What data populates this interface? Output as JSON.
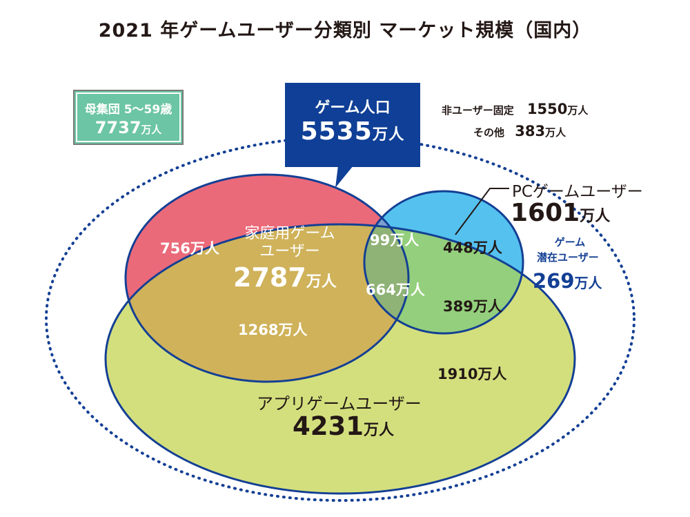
{
  "title": "2021 年ゲームユーザー分類別 マーケット規模（国内）",
  "population": {
    "label": "母集団 5〜59歳",
    "value": "7737",
    "unit": "万人"
  },
  "game_population": {
    "label": "ゲーム人口",
    "value": "5535",
    "unit": "万人"
  },
  "non_users": {
    "fixed_label": "非ユーザー固定",
    "fixed_value": "1550",
    "fixed_unit": "万人",
    "other_label": "その他",
    "other_value": "383",
    "other_unit": "万人"
  },
  "sets": {
    "home": {
      "label_line1": "家庭用ゲーム",
      "label_line2": "ユーザー",
      "value": "2787",
      "unit": "万人",
      "color": "#ea6a7a"
    },
    "pc": {
      "label": "PCゲームユーザー",
      "value": "1601",
      "unit": "万人",
      "color": "#55c1ef"
    },
    "app": {
      "label": "アプリゲームユーザー",
      "value": "4231",
      "unit": "万人",
      "color": "#d3df7d"
    }
  },
  "regions": {
    "home_only": "756万人",
    "home_pc": "99万人",
    "pc_only": "448万人",
    "all_three": "664万人",
    "pc_app": "389万人",
    "home_app": "1268万人",
    "app_only": "1910万人"
  },
  "potential": {
    "label_line1": "ゲーム",
    "label_line2": "潜在ユーザー",
    "value": "269",
    "unit": "万人",
    "color": "#133f94"
  },
  "colors": {
    "outline": "#133f94",
    "box": "#0f3f96",
    "population_box": "#6cc5a4"
  }
}
